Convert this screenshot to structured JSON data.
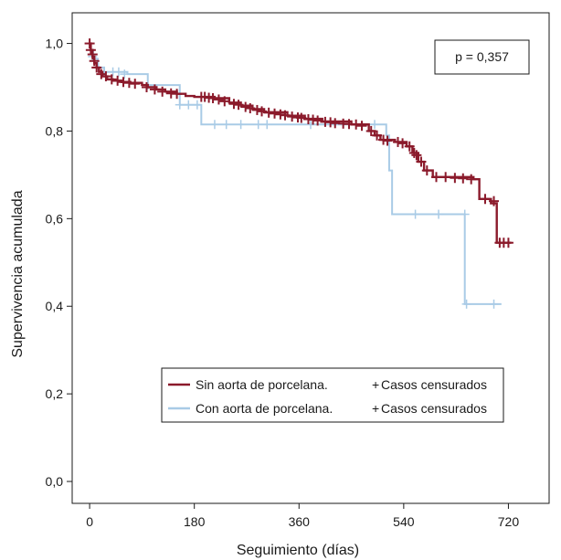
{
  "chart_data": {
    "type": "line",
    "xlabel": "Seguimiento (días)",
    "ylabel": "Supervivencia acumulada",
    "xlim": [
      -30,
      790
    ],
    "ylim": [
      -0.05,
      1.07
    ],
    "xticks": [
      0,
      180,
      360,
      540,
      720
    ],
    "xtick_labels": [
      "0",
      "180",
      "360",
      "540",
      "720"
    ],
    "yticks": [
      0.0,
      0.2,
      0.4,
      0.6,
      0.8,
      1.0
    ],
    "ytick_labels": [
      "0,0",
      "0,2",
      "0,4",
      "0,6",
      "0,8",
      "1,0"
    ],
    "grid": false,
    "legend_position": "lower-center",
    "annotation": "p = 0,357",
    "legend": {
      "sin_label": "Sin aorta de porcelana.",
      "con_label": "Con aorta de porcelana.",
      "censored_label_1": "Casos censurados",
      "censored_label_2": "Casos censurados",
      "censor_symbol": "+"
    },
    "series": [
      {
        "name": "Sin aorta de porcelana.",
        "color": "#8b1a2b",
        "steps": [
          [
            0,
            1.0
          ],
          [
            2,
            0.985
          ],
          [
            5,
            0.97
          ],
          [
            8,
            0.955
          ],
          [
            12,
            0.945
          ],
          [
            16,
            0.935
          ],
          [
            22,
            0.925
          ],
          [
            30,
            0.918
          ],
          [
            40,
            0.915
          ],
          [
            55,
            0.912
          ],
          [
            70,
            0.91
          ],
          [
            90,
            0.905
          ],
          [
            100,
            0.9
          ],
          [
            115,
            0.895
          ],
          [
            130,
            0.89
          ],
          [
            150,
            0.885
          ],
          [
            165,
            0.88
          ],
          [
            180,
            0.878
          ],
          [
            215,
            0.875
          ],
          [
            240,
            0.865
          ],
          [
            260,
            0.858
          ],
          [
            280,
            0.85
          ],
          [
            300,
            0.843
          ],
          [
            340,
            0.835
          ],
          [
            370,
            0.828
          ],
          [
            400,
            0.822
          ],
          [
            450,
            0.815
          ],
          [
            480,
            0.8
          ],
          [
            490,
            0.79
          ],
          [
            500,
            0.78
          ],
          [
            525,
            0.775
          ],
          [
            545,
            0.765
          ],
          [
            555,
            0.75
          ],
          [
            565,
            0.73
          ],
          [
            575,
            0.71
          ],
          [
            590,
            0.695
          ],
          [
            660,
            0.69
          ],
          [
            670,
            0.645
          ],
          [
            685,
            0.645
          ],
          [
            690,
            0.635
          ],
          [
            700,
            0.545
          ],
          [
            725,
            0.545
          ]
        ],
        "censored": [
          [
            0,
            1.0
          ],
          [
            2,
            0.985
          ],
          [
            5,
            0.975
          ],
          [
            8,
            0.96
          ],
          [
            12,
            0.945
          ],
          [
            20,
            0.93
          ],
          [
            28,
            0.925
          ],
          [
            38,
            0.918
          ],
          [
            48,
            0.915
          ],
          [
            58,
            0.912
          ],
          [
            68,
            0.91
          ],
          [
            78,
            0.908
          ],
          [
            98,
            0.9
          ],
          [
            112,
            0.895
          ],
          [
            125,
            0.89
          ],
          [
            140,
            0.886
          ],
          [
            150,
            0.885
          ],
          [
            192,
            0.878
          ],
          [
            198,
            0.878
          ],
          [
            205,
            0.876
          ],
          [
            212,
            0.875
          ],
          [
            222,
            0.872
          ],
          [
            232,
            0.868
          ],
          [
            248,
            0.862
          ],
          [
            256,
            0.86
          ],
          [
            268,
            0.855
          ],
          [
            276,
            0.852
          ],
          [
            288,
            0.848
          ],
          [
            296,
            0.845
          ],
          [
            308,
            0.842
          ],
          [
            318,
            0.84
          ],
          [
            328,
            0.838
          ],
          [
            336,
            0.836
          ],
          [
            348,
            0.833
          ],
          [
            358,
            0.831
          ],
          [
            364,
            0.83
          ],
          [
            376,
            0.827
          ],
          [
            384,
            0.826
          ],
          [
            392,
            0.824
          ],
          [
            405,
            0.821
          ],
          [
            414,
            0.82
          ],
          [
            422,
            0.818
          ],
          [
            436,
            0.817
          ],
          [
            446,
            0.816
          ],
          [
            458,
            0.815
          ],
          [
            468,
            0.812
          ],
          [
            484,
            0.8
          ],
          [
            494,
            0.79
          ],
          [
            505,
            0.78
          ],
          [
            512,
            0.778
          ],
          [
            530,
            0.775
          ],
          [
            538,
            0.772
          ],
          [
            550,
            0.765
          ],
          [
            558,
            0.75
          ],
          [
            562,
            0.745
          ],
          [
            570,
            0.73
          ],
          [
            580,
            0.71
          ],
          [
            596,
            0.695
          ],
          [
            612,
            0.695
          ],
          [
            628,
            0.693
          ],
          [
            642,
            0.692
          ],
          [
            656,
            0.69
          ],
          [
            680,
            0.645
          ],
          [
            695,
            0.64
          ],
          [
            705,
            0.545
          ],
          [
            712,
            0.545
          ],
          [
            720,
            0.545
          ]
        ]
      },
      {
        "name": "Con aorta de porcelana.",
        "color": "#a9cbe6",
        "steps": [
          [
            0,
            0.985
          ],
          [
            6,
            0.965
          ],
          [
            14,
            0.945
          ],
          [
            25,
            0.935
          ],
          [
            65,
            0.93
          ],
          [
            100,
            0.905
          ],
          [
            155,
            0.86
          ],
          [
            170,
            0.86
          ],
          [
            185,
            0.86
          ],
          [
            192,
            0.815
          ],
          [
            490,
            0.815
          ],
          [
            510,
            0.79
          ],
          [
            515,
            0.71
          ],
          [
            520,
            0.61
          ],
          [
            640,
            0.61
          ],
          [
            645,
            0.405
          ],
          [
            708,
            0.405
          ]
        ],
        "censored": [
          [
            5,
            0.97
          ],
          [
            15,
            0.945
          ],
          [
            25,
            0.935
          ],
          [
            40,
            0.935
          ],
          [
            50,
            0.935
          ],
          [
            60,
            0.93
          ],
          [
            100,
            0.905
          ],
          [
            155,
            0.86
          ],
          [
            170,
            0.86
          ],
          [
            185,
            0.86
          ],
          [
            215,
            0.815
          ],
          [
            235,
            0.815
          ],
          [
            260,
            0.815
          ],
          [
            290,
            0.815
          ],
          [
            305,
            0.815
          ],
          [
            380,
            0.815
          ],
          [
            490,
            0.815
          ],
          [
            560,
            0.61
          ],
          [
            600,
            0.61
          ],
          [
            645,
            0.61
          ],
          [
            648,
            0.405
          ],
          [
            695,
            0.405
          ]
        ]
      }
    ]
  }
}
